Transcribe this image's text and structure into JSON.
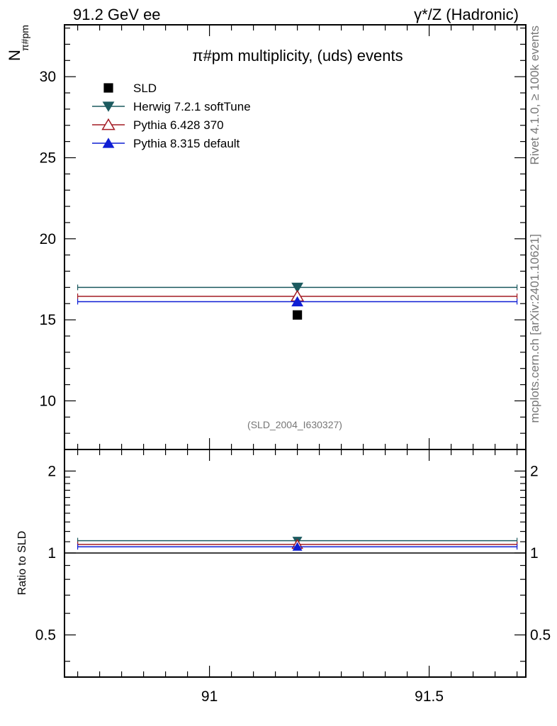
{
  "header": {
    "left": "91.2 GeV ee",
    "right": "γ*/Z (Hadronic)"
  },
  "side": {
    "rivet": "Rivet 4.1.0, ≥ 100k events",
    "mcplots": "mcplots.cern.ch [arXiv:2401.10621]"
  },
  "chart_data": [
    {
      "type": "scatter",
      "title": "π#pm multiplicity, (uds) events",
      "ylabel_main": "N",
      "ylabel_sub": "π#pm",
      "watermark": "(SLD_2004_I630327)",
      "xlim": [
        90.67,
        91.72
      ],
      "ylim": [
        7.0,
        33.2
      ],
      "x_ticks": [
        91,
        91.5
      ],
      "x_tick_labels": [
        "91",
        "91.5"
      ],
      "y_ticks": [
        10,
        15,
        20,
        25,
        30
      ],
      "y_tick_labels": [
        "10",
        "15",
        "20",
        "25",
        "30"
      ],
      "series": [
        {
          "name": "SLD",
          "color": "#000000",
          "marker": "square",
          "x": 91.2,
          "y": 15.3,
          "xerr": [
            91.2,
            91.2
          ]
        },
        {
          "name": "Herwig 7.2.1 softTune",
          "color": "#1c5a5f",
          "marker": "triangle-down",
          "x": 91.2,
          "y": 17.0,
          "xerr": [
            90.7,
            91.7
          ]
        },
        {
          "name": "Pythia 6.428 370",
          "color": "#a31b24",
          "marker": "triangle-up-open",
          "x": 91.2,
          "y": 16.45,
          "xerr": [
            90.7,
            91.7
          ]
        },
        {
          "name": "Pythia 8.315 default",
          "color": "#0f1ed4",
          "marker": "triangle-up",
          "x": 91.2,
          "y": 16.12,
          "xerr": [
            90.7,
            91.7
          ]
        }
      ]
    },
    {
      "type": "scatter",
      "title": "",
      "ylabel": "Ratio to SLD",
      "xlim": [
        90.67,
        91.72
      ],
      "ylim": [
        0.35,
        2.4
      ],
      "y_ticks": [
        0.5,
        1,
        2
      ],
      "y_tick_labels": [
        "0.5",
        "1",
        "2"
      ],
      "reference_line": 1.0,
      "series": [
        {
          "name": "Herwig 7.2.1 softTune",
          "color": "#1c5a5f",
          "marker": "triangle-down",
          "x": 91.2,
          "y": 1.11
        },
        {
          "name": "Pythia 6.428 370",
          "color": "#a31b24",
          "marker": "triangle-up-open",
          "x": 91.2,
          "y": 1.075
        },
        {
          "name": "Pythia 8.315 default",
          "color": "#0f1ed4",
          "marker": "triangle-up",
          "x": 91.2,
          "y": 1.054
        }
      ]
    }
  ]
}
